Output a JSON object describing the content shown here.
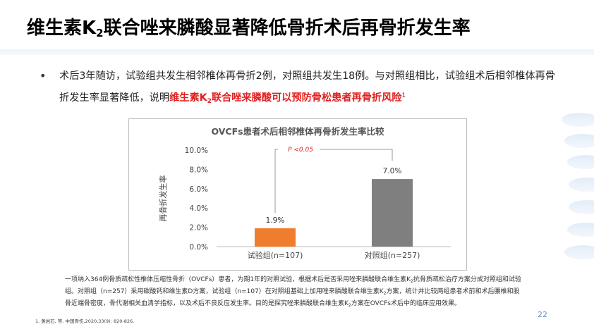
{
  "title": {
    "part1": "维生素K",
    "sub": "2",
    "part2": "联合唑来膦酸显著降低骨折术后再骨折发生率"
  },
  "bullet": {
    "text_plain": "术后3年随访，试验组共发生相邻椎体再骨折2例，对照组共发生18例。与对照组相比，试验组术后相邻椎体再骨折发生率显著降低，说明",
    "highlight_part1": "维生素K",
    "highlight_sub": "2",
    "highlight_part2": "联合唑来膦酸可以预防骨松患者再骨折风险",
    "ref_mark": "1"
  },
  "chart_data": {
    "type": "bar",
    "title": "OVCFs患者术后相邻椎体再骨折发生率比较",
    "ylabel": "再骨折发生率",
    "xlabel": "",
    "categories": [
      "试验组(n=107)",
      "对照组(n=257)"
    ],
    "values": [
      1.9,
      7.0
    ],
    "value_labels": [
      "1.9%",
      "7.0%"
    ],
    "ylim": [
      0,
      10
    ],
    "yticks": [
      "0.0%",
      "2.0%",
      "4.0%",
      "6.0%",
      "8.0%",
      "10.0%"
    ],
    "ytick_values": [
      0,
      2,
      4,
      6,
      8,
      10
    ],
    "bar_colors": [
      "#ef7d2d",
      "#7f7f7f"
    ],
    "significance": "P <0.05",
    "significance_color": "#e02020",
    "grid": false,
    "legend": "none"
  },
  "footnote": {
    "line1": "一项纳入364例骨质疏松性椎体压缩性骨折（OVCFs）患者，为期1年的对照试验，根据术后是否采用唑来膦酸联合维生素K",
    "line1_sub": "2",
    "line1_end": "抗骨质疏松治疗方案分成对照组和试验",
    "line2a": "组。对照组（n=257）采用碳酸钙和维生素D方案，试验组（n=107）在对照组基础上加用唑来膦酸联合维生素K",
    "line2_sub": "2",
    "line2b": "方案，统计并比较两组患者术前和术后腰椎和股",
    "line3a": "骨近端骨密度，骨代谢相关血清学指标，以及术后不良反应发生率。目的是探究唑来膦酸联合维生素K",
    "line3_sub": "2",
    "line3b": "方案在OVCFs术后中的临床应用效果。"
  },
  "reference": "1. 黄岩石, 等. 中国骨伤,2020,33(9): 820-826.",
  "page_number": "22",
  "colors": {
    "highlight": "#e02020",
    "page_number": "#6a8ccf"
  }
}
